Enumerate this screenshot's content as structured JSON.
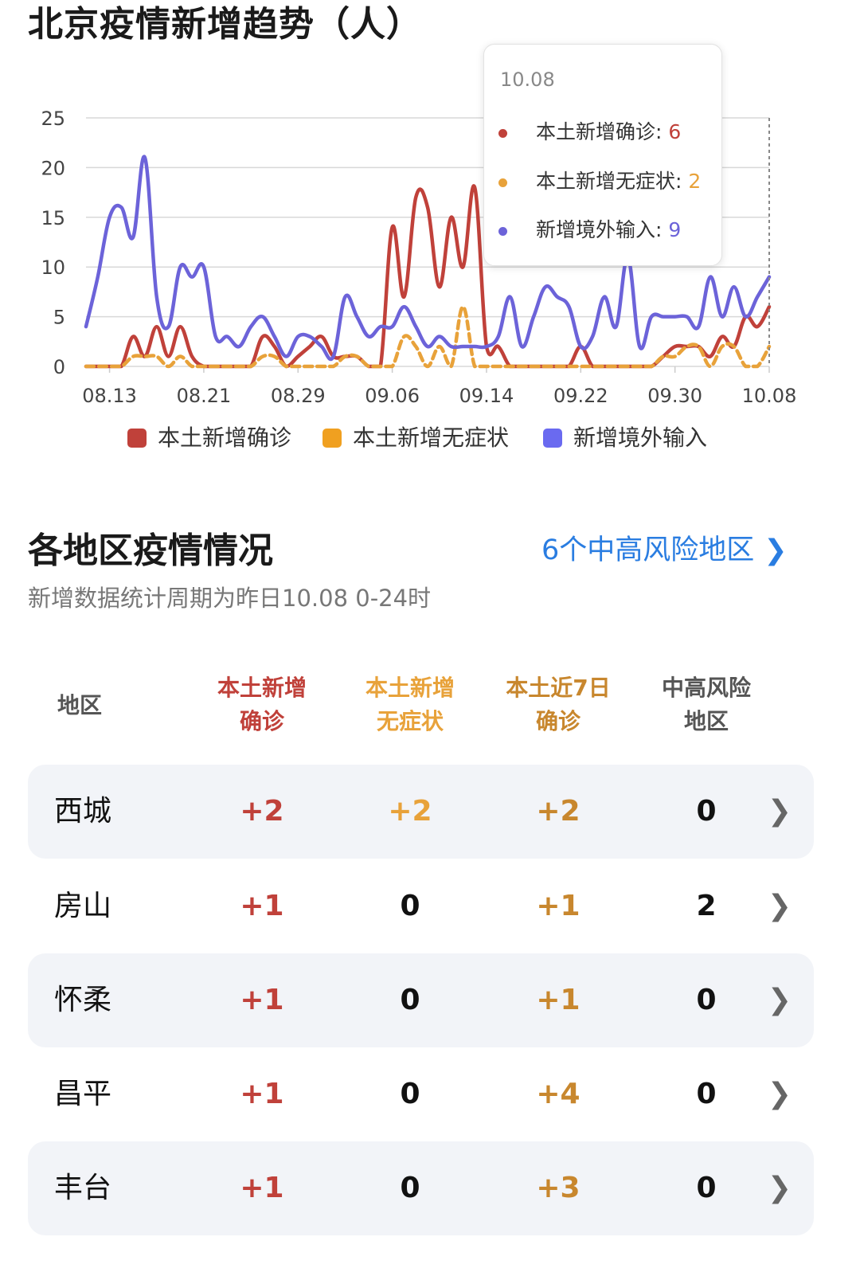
{
  "header": {
    "title": "北京疫情新增趋势（人）"
  },
  "chart_data": {
    "type": "line",
    "title": "北京疫情新增趋势（人）",
    "x_start": "08.11",
    "x_end": "10.08",
    "x_tick_labels": [
      "08.13",
      "08.21",
      "08.29",
      "09.06",
      "09.14",
      "09.22",
      "09.30",
      "10.08"
    ],
    "ylim": [
      0,
      25
    ],
    "y_tick_labels": [
      "0",
      "5",
      "10",
      "15",
      "20",
      "25"
    ],
    "grid": true,
    "legend_position": "bottom",
    "series": [
      {
        "name": "本土新增确诊",
        "color": "#c0413a",
        "values": [
          0,
          0,
          0,
          0,
          3,
          1,
          4,
          1,
          4,
          1,
          0,
          0,
          0,
          0,
          0,
          3,
          2,
          0,
          1,
          2,
          3,
          1,
          1,
          1,
          0,
          0,
          14,
          7,
          17,
          16,
          8,
          15,
          10,
          18,
          2,
          2,
          0,
          0,
          0,
          0,
          0,
          0,
          2,
          0,
          0,
          0,
          0,
          0,
          0,
          1,
          2,
          2,
          2,
          1,
          3,
          2,
          5,
          4,
          6
        ]
      },
      {
        "name": "本土新增无症状",
        "color": "#e8a23a",
        "values": [
          0,
          0,
          0,
          0,
          1,
          1,
          1,
          0,
          1,
          0,
          0,
          0,
          0,
          0,
          0,
          1,
          1,
          0,
          0,
          0,
          0,
          0,
          1,
          1,
          0,
          0,
          0,
          3,
          2,
          0,
          2,
          0,
          6,
          0,
          0,
          0,
          0,
          0,
          0,
          0,
          0,
          0,
          0,
          0,
          0,
          0,
          0,
          0,
          0,
          1,
          1,
          2,
          2,
          0,
          2,
          2,
          0,
          0,
          2
        ]
      },
      {
        "name": "新增境外输入",
        "color": "#6c63d9",
        "values": [
          4,
          9,
          15,
          16,
          13,
          21,
          7,
          4,
          10,
          9,
          10,
          3,
          3,
          2,
          4,
          5,
          3,
          1,
          3,
          3,
          2,
          1,
          7,
          5,
          3,
          4,
          4,
          6,
          4,
          2,
          3,
          2,
          2,
          2,
          2,
          3,
          7,
          2,
          5,
          8,
          7,
          6,
          2,
          3,
          7,
          4,
          11,
          2,
          5,
          5,
          5,
          5,
          4,
          9,
          5,
          8,
          5,
          7,
          9
        ]
      }
    ],
    "tooltip": {
      "date": "10.08",
      "rows": [
        {
          "label": "本土新增确诊",
          "value": "6",
          "color": "#c0413a"
        },
        {
          "label": "本土新增无症状",
          "value": "2",
          "color": "#e8a23a"
        },
        {
          "label": "新增境外输入",
          "value": "9",
          "color": "#6c63d9"
        }
      ]
    }
  },
  "regions": {
    "title": "各地区疫情情况",
    "risk_link": "6个中高风险地区",
    "subtitle": "新增数据统计周期为昨日10.08 0-24时",
    "columns": [
      {
        "l1": "地区",
        "l2": "",
        "color": "#555555"
      },
      {
        "l1": "本土新增",
        "l2": "确诊",
        "color": "#c0413a"
      },
      {
        "l1": "本土新增",
        "l2": "无症状",
        "color": "#e8a23a"
      },
      {
        "l1": "本土近7日",
        "l2": "确诊",
        "color": "#c8872e"
      },
      {
        "l1": "中高风险",
        "l2": "地区",
        "color": "#555555"
      }
    ],
    "rows": [
      {
        "name": "西城",
        "confirmed": "+2",
        "asymptomatic": "+2",
        "week": "+2",
        "risk": "0"
      },
      {
        "name": "房山",
        "confirmed": "+1",
        "asymptomatic": "0",
        "week": "+1",
        "risk": "2"
      },
      {
        "name": "怀柔",
        "confirmed": "+1",
        "asymptomatic": "0",
        "week": "+1",
        "risk": "0"
      },
      {
        "name": "昌平",
        "confirmed": "+1",
        "asymptomatic": "0",
        "week": "+4",
        "risk": "0"
      },
      {
        "name": "丰台",
        "confirmed": "+1",
        "asymptomatic": "0",
        "week": "+3",
        "risk": "0"
      }
    ]
  }
}
